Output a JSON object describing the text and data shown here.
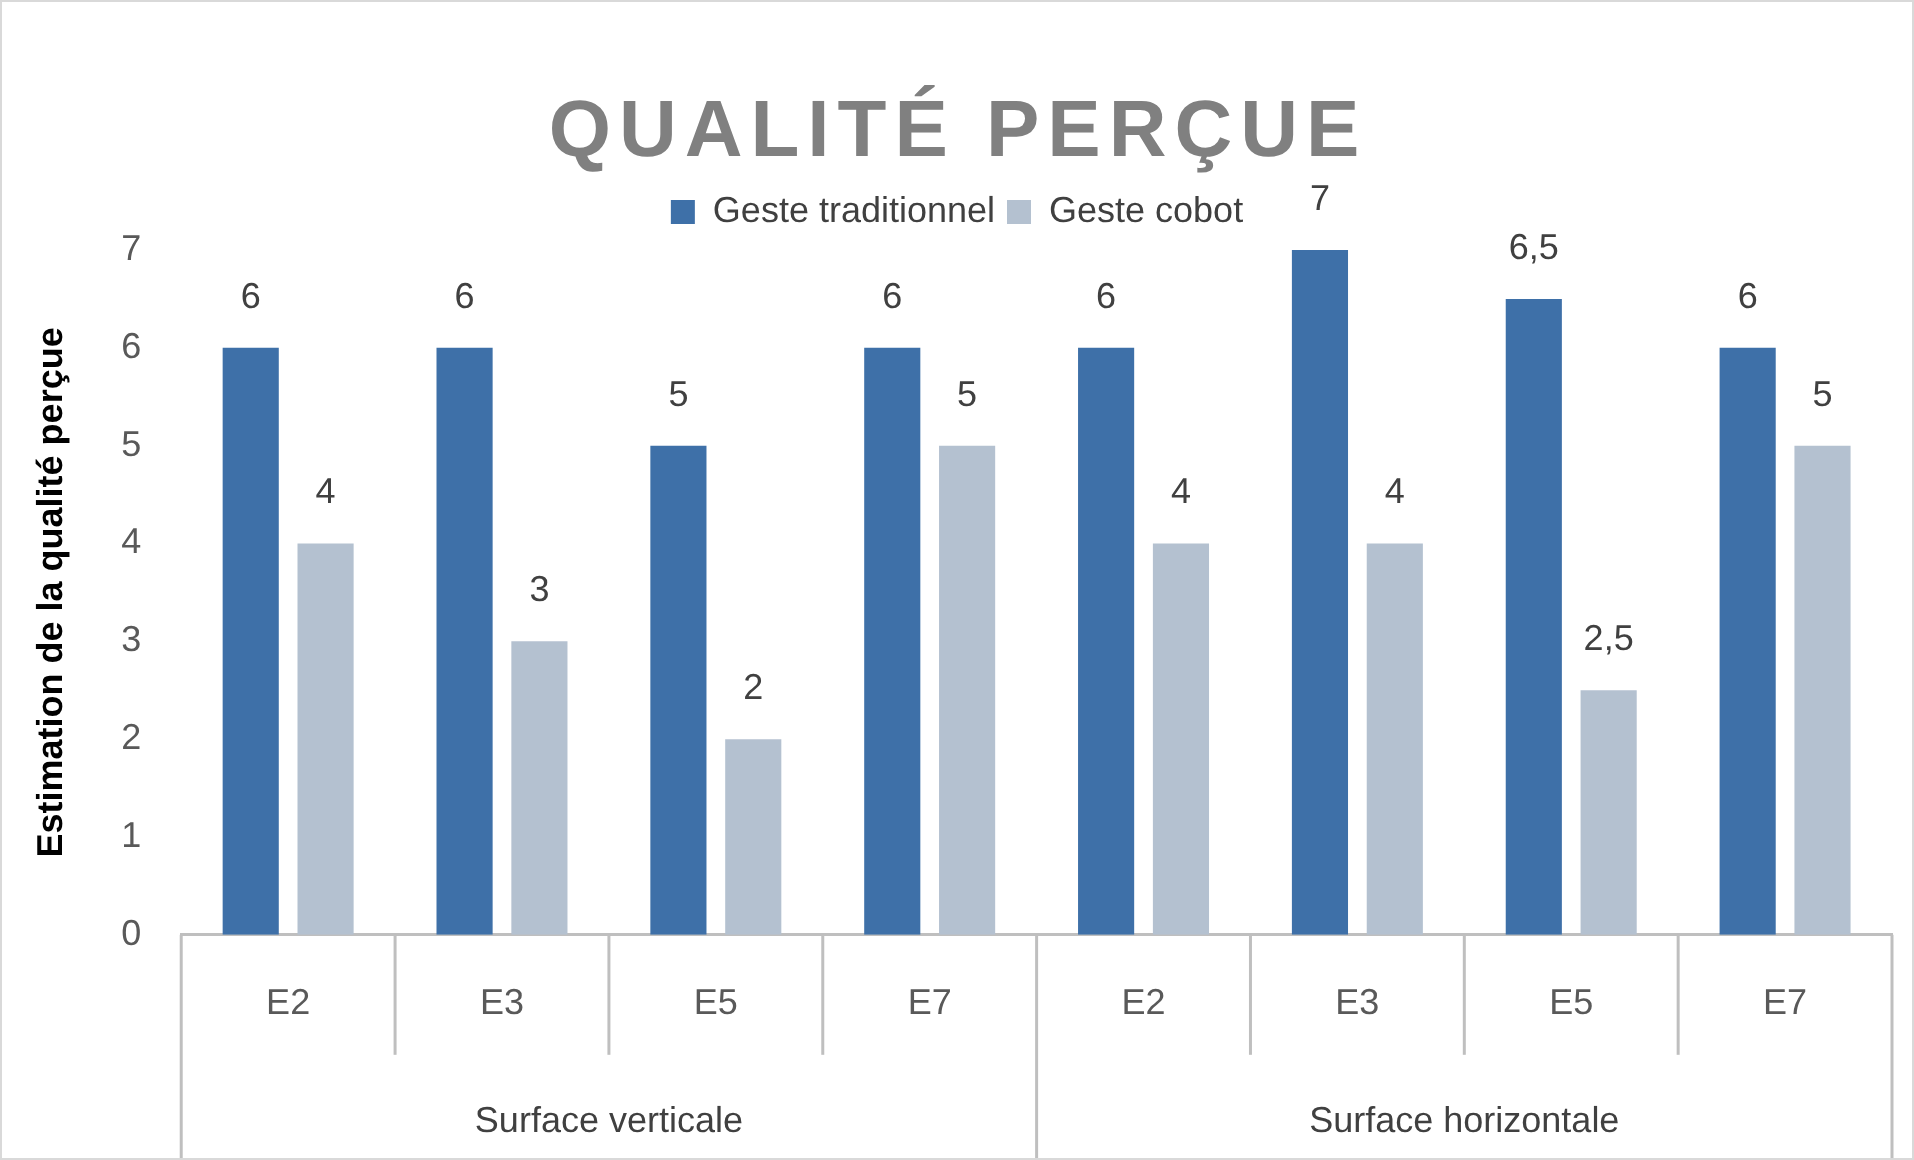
{
  "chart_data": {
    "type": "bar",
    "title": "QUALITÉ PERÇUE",
    "ylabel": "Estimation de la qualité perçue",
    "categories": [
      "E2",
      "E3",
      "E5",
      "E7",
      "E2",
      "E3",
      "E5",
      "E7"
    ],
    "annotations": [
      "Surface verticale",
      "Surface horizontale"
    ],
    "series": [
      {
        "name": "Geste traditionnel",
        "color": "#3e70a8",
        "values": [
          6,
          6,
          5,
          6,
          6,
          7,
          6.5,
          6
        ],
        "value_labels": [
          "6",
          "6",
          "5",
          "6",
          "6",
          "7",
          "6,5",
          "6"
        ]
      },
      {
        "name": "Geste cobot",
        "color": "#b4c1d0",
        "values": [
          4,
          3,
          2,
          5,
          4,
          4,
          2.5,
          5
        ],
        "value_labels": [
          "4",
          "3",
          "2",
          "5",
          "4",
          "4",
          "2,5",
          "5"
        ]
      }
    ],
    "ylim": [
      0,
      7
    ],
    "yticks": [
      0,
      1,
      2,
      3,
      4,
      5,
      6,
      7
    ],
    "grid": false,
    "legend": "top"
  }
}
